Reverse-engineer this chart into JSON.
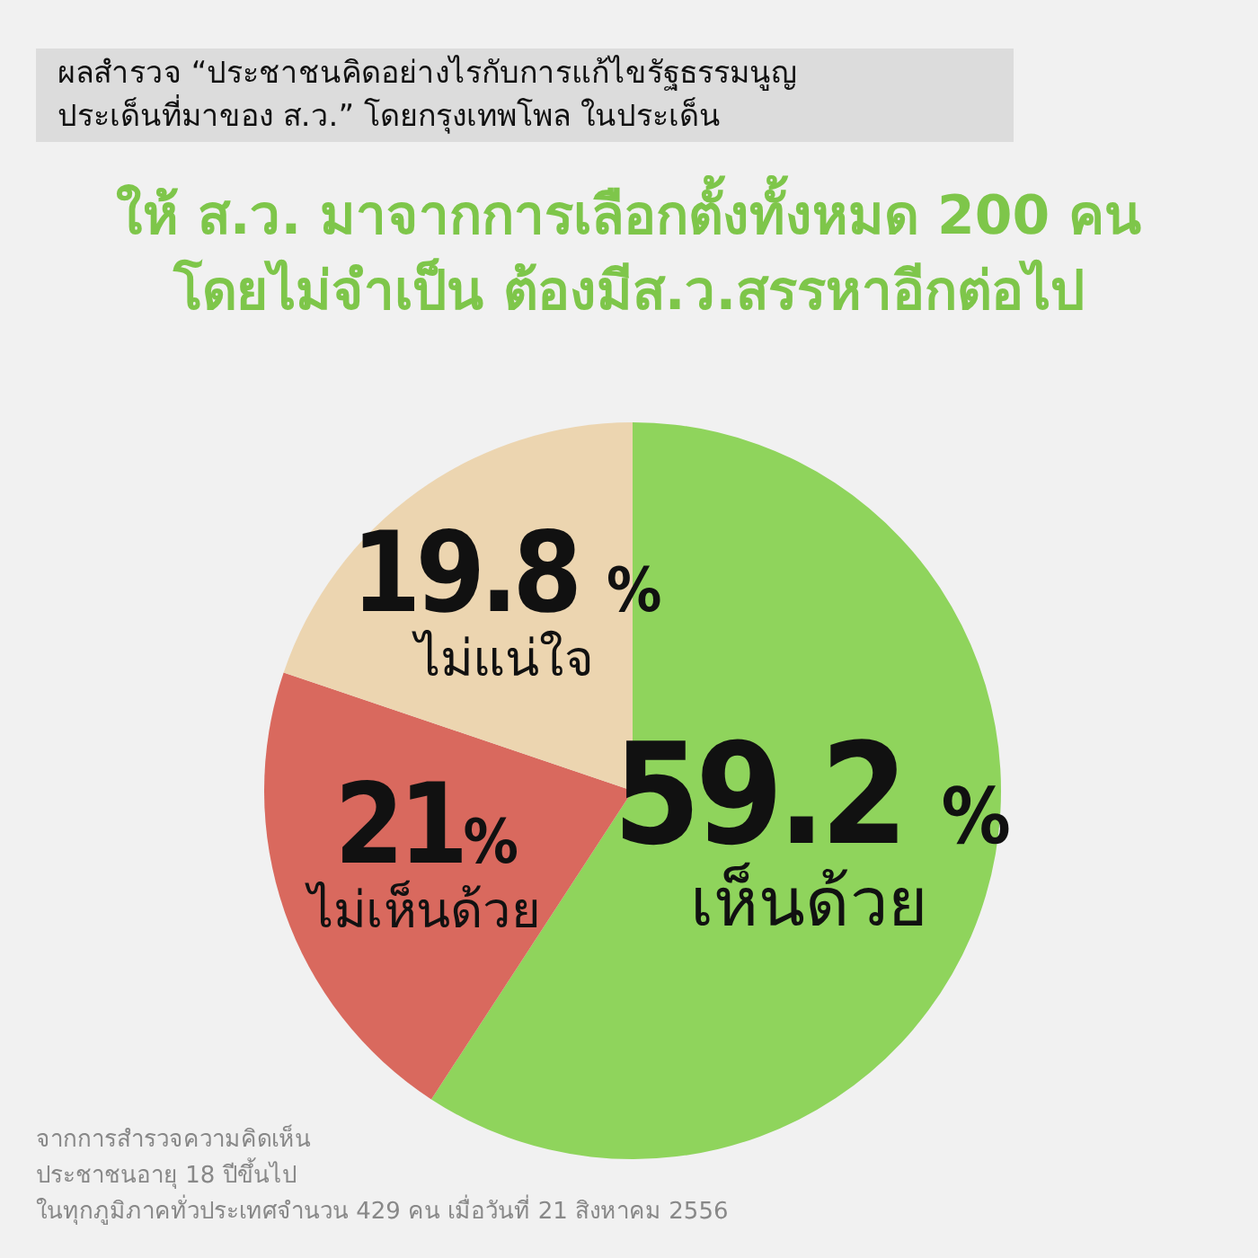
{
  "chart_data": {
    "type": "pie",
    "title": "ผลสำรวจ “ประชาชนคิดอย่างไรกับการแก้ไขรัฐธรรมนูญ\nประเด็นที่มาของ ส.ว.”  โดยกรุงเทพโพล ในประเด็น",
    "subtitle": "ให้ ส.ว. มาจากการเลือกตั้งทั้งหมด  200 คน\nโดยไม่จำเป็น ต้องมีส.ว.สรรหาอีกต่อไป",
    "categories": [
      "เห็นด้วย",
      "ไม่เห็นด้วย",
      "ไม่แน่ใจ"
    ],
    "values": [
      59.2,
      21,
      19.8
    ],
    "colors": [
      "#8fd45c",
      "#d9695e",
      "#ecd5b0"
    ],
    "value_labels": [
      "59.2 %",
      "21%",
      "19.8 %"
    ],
    "annotations": [
      "จากการสำรวจความคิดเห็น\nประชาชนอายุ 18 ปีขึ้นไป\nในทุกภูมิภาคทั่วประเทศจำนวน  429 คน   เมื่อวันที่ 21 สิงหาคม 2556"
    ]
  }
}
